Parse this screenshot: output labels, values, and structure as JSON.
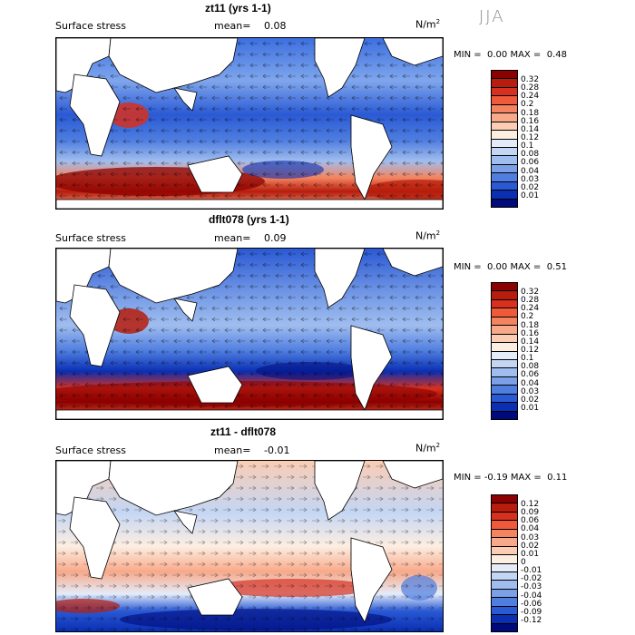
{
  "season": "JJA",
  "panels": [
    {
      "title": "zt11 (yrs 1-1)",
      "variable": "Surface stress",
      "mean_label": "mean=",
      "mean_value": "0.08",
      "units": "N/m",
      "units_exp": "2",
      "min_label": "MIN =",
      "min_value": "0.00",
      "max_label": "MAX =",
      "max_value": "0.48",
      "legend": {
        "labels": [
          "0.32",
          "0.28",
          "0.24",
          "0.2",
          "0.18",
          "0.16",
          "0.14",
          "0.12",
          "0.1",
          "0.08",
          "0.06",
          "0.04",
          "0.03",
          "0.02",
          "0.01"
        ],
        "colors": [
          "#8b0000",
          "#b71c0c",
          "#d7301f",
          "#ef5a3a",
          "#f4845f",
          "#f8a98a",
          "#fbcdb4",
          "#fdeee2",
          "#e4ecfa",
          "#c3d6f4",
          "#a0bdef",
          "#7ba0e8",
          "#4f7ee0",
          "#2a59d4",
          "#0a2fb3",
          "#000a7a"
        ]
      }
    },
    {
      "title": "dflt078 (yrs 1-1)",
      "variable": "Surface stress",
      "mean_label": "mean=",
      "mean_value": "0.09",
      "units": "N/m",
      "units_exp": "2",
      "min_label": "MIN =",
      "min_value": "0.00",
      "max_label": "MAX =",
      "max_value": "0.51",
      "legend": {
        "labels": [
          "0.32",
          "0.28",
          "0.24",
          "0.2",
          "0.18",
          "0.16",
          "0.14",
          "0.12",
          "0.1",
          "0.08",
          "0.06",
          "0.04",
          "0.03",
          "0.02",
          "0.01"
        ],
        "colors": [
          "#8b0000",
          "#b71c0c",
          "#d7301f",
          "#ef5a3a",
          "#f4845f",
          "#f8a98a",
          "#fbcdb4",
          "#fdeee2",
          "#e4ecfa",
          "#c3d6f4",
          "#a0bdef",
          "#7ba0e8",
          "#4f7ee0",
          "#2a59d4",
          "#0a2fb3",
          "#000a7a"
        ]
      }
    },
    {
      "title": "zt11 - dflt078",
      "variable": "Surface stress",
      "mean_label": "mean=",
      "mean_value": "-0.01",
      "units": "N/m",
      "units_exp": "2",
      "min_label": "MIN =",
      "min_value": "-0.19",
      "max_label": "MAX =",
      "max_value": "0.11",
      "legend": {
        "labels": [
          "0.12",
          "0.09",
          "0.06",
          "0.04",
          "0.03",
          "0.02",
          "0.01",
          "0",
          "-0.01",
          "-0.02",
          "-0.03",
          "-0.04",
          "-0.06",
          "-0.09",
          "-0.12"
        ],
        "colors": [
          "#8b0000",
          "#b71c0c",
          "#d7301f",
          "#ef5a3a",
          "#f4845f",
          "#f8a98a",
          "#fbcdb4",
          "#fdeee2",
          "#e4ecfa",
          "#c3d6f4",
          "#a0bdef",
          "#7ba0e8",
          "#4f7ee0",
          "#2a59d4",
          "#0a2fb3",
          "#000a7a"
        ]
      }
    }
  ],
  "colors": {
    "ocean_low": "#1a45c8",
    "ocean_mid": "#7fa6ec",
    "ocean_high": "#d7301f",
    "land": "#ffffff",
    "coast": "#000000"
  }
}
